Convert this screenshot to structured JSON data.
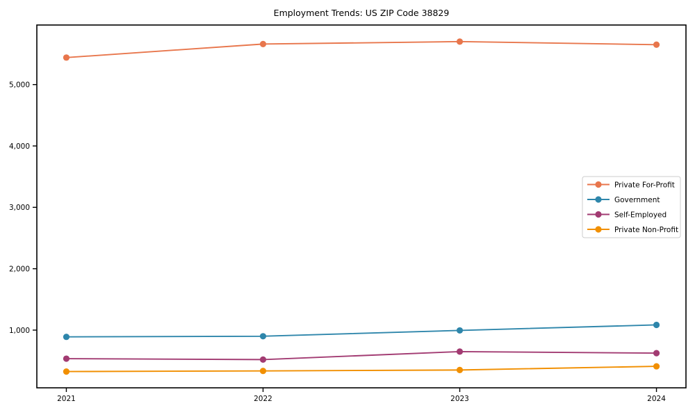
{
  "page": {
    "title": "Employment Trends: US ZIP Code 38829"
  },
  "chart_data": {
    "type": "line",
    "title": "Employment Trends: US ZIP Code 38829",
    "x": [
      2021,
      2022,
      2023,
      2024
    ],
    "x_tick_labels": [
      "2021",
      "2022",
      "2023",
      "2024"
    ],
    "series": [
      {
        "name": "Private For-Profit",
        "color": "#E8764C",
        "values": [
          5440,
          5660,
          5700,
          5650
        ]
      },
      {
        "name": "Government",
        "color": "#2E86AB",
        "values": [
          890,
          900,
          995,
          1085
        ]
      },
      {
        "name": "Self-Employed",
        "color": "#A23B72",
        "values": [
          535,
          520,
          650,
          625
        ]
      },
      {
        "name": "Private Non-Profit",
        "color": "#F18F01",
        "values": [
          325,
          335,
          350,
          410
        ]
      }
    ],
    "yticks": [
      1000,
      2000,
      3000,
      4000,
      5000
    ],
    "ytick_labels": [
      "1,000",
      "2,000",
      "3,000",
      "4,000",
      "5,000"
    ],
    "xlim": [
      2020.85,
      2024.15
    ],
    "ylim": [
      60,
      5970
    ],
    "grid": false,
    "legend_position": "center-right",
    "marker": "circle",
    "axis_color": "#000000",
    "legend_border_color": "#cccccc",
    "background": "#ffffff"
  }
}
